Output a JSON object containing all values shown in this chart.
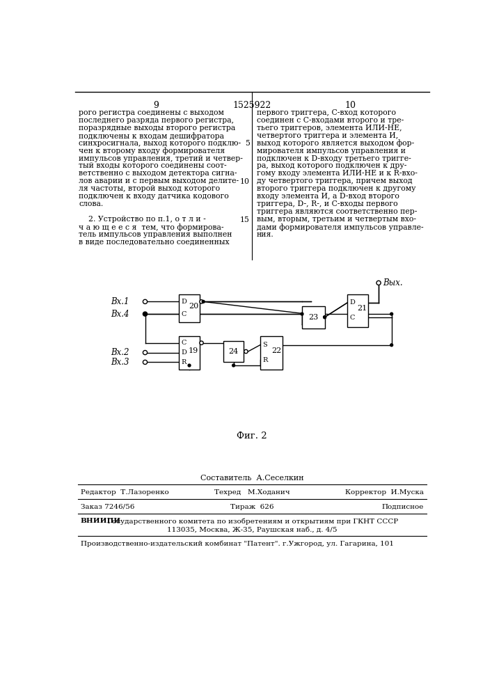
{
  "page_width": 7.07,
  "page_height": 10.0,
  "bg_color": "#ffffff",
  "top_header": {
    "left_num": "9",
    "center_text": "1525922",
    "right_num": "10"
  },
  "left_column_text": [
    "рого регистра соединены с выходом",
    "последнего разряда первого регистра,",
    "поразрядные выходы второго регистра",
    "подключены к входам дешифратора",
    "синхросигнала, выход которого подклю-",
    "чен к второму входу формирователя",
    "импульсов управления, третий и четвер-",
    "тый входы которого соединены соот-",
    "ветственно с выходом детектора сигна-",
    "лов аварии и с первым выходом делите-",
    "ля частоты, второй выход которого",
    "подключен к входу датчика кодового",
    "слова.",
    "",
    "    2. Устройство по п.1, о т л и -",
    "ч а ю щ е е с я  тем, что формирова-",
    "тель импульсов управления выполнен",
    "в виде последовательно соединенных"
  ],
  "right_column_text": [
    "первого триггера, С-вход которого",
    "соединен с С-входами второго и тре-",
    "тьего триггеров, элемента ИЛИ-НЕ,",
    "четвертого триггера и элемента И,",
    "выход которого является выходом фор-",
    "мирователя импульсов управления и",
    "подключен к D-входу третьего тригге-",
    "ра, выход которого подключен к дру-",
    "гому входу элемента ИЛИ-НЕ и к R-вхо-",
    "ду четвертого триггера, причем выход",
    "второго триггера подключен к другому",
    "входу элемента И, а D-вход второго",
    "триггера, D-, R-, и С-входы первого",
    "триггера являются соответственно пер-",
    "вым, вторым, третьим и четвертым вхо-",
    "дами формирователя импульсов управле-",
    "ния."
  ],
  "fig_caption": "Фиг. 2",
  "sestavitel": "Составитель  А.Сеселкин",
  "editor": "Редактор  Т.Лазоренко",
  "tehred": "Техред   М.Ходанич",
  "korrektor": "Корректор  И.Муска",
  "zakaz": "Заказ 7246/56",
  "tirazh": "Тираж  626",
  "podpisnoe": "Подписное",
  "vniip1": "ВНИИПИ Государственного комитета по изобретениям и открытиям при ГКНТ СССР",
  "vniip2": "113035, Москва, Ж-35, Раушская наб., д. 4/5",
  "proizv": "Производственно-издательский комбинат \"Патент\". г.Ужгород, ул. Гагарина, 101"
}
